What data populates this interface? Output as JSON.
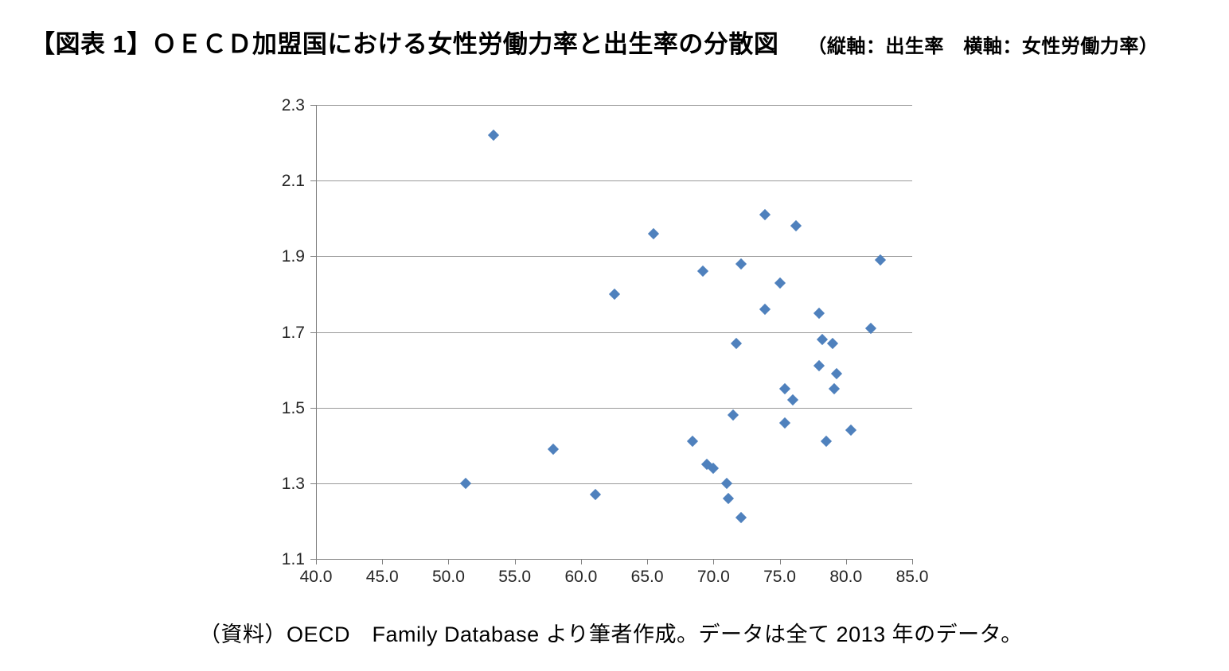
{
  "title": {
    "main": "【図表 1】ＯＥＣＤ加盟国における女性労働力率と出生率の分散図",
    "note": "（縦軸：出生率　横軸：女性労働力率）"
  },
  "source": {
    "text": "（資料）OECD　Family Database より筆者作成。データは全て 2013 年のデータ。"
  },
  "colors": {
    "marker": "#4F81BD",
    "gridline": "#9a9a9a",
    "axis": "#808080",
    "label_text": "#262626",
    "title_text": "#000000"
  },
  "chart_data": {
    "type": "scatter",
    "title": "ＯＥＣＤ加盟国における女性労働力率と出生率の分散図",
    "xlabel": "女性労働力率",
    "ylabel": "出生率",
    "xlim": [
      40.0,
      85.0
    ],
    "ylim": [
      1.1,
      2.3
    ],
    "x_ticks": [
      "40.0",
      "45.0",
      "50.0",
      "55.0",
      "60.0",
      "65.0",
      "70.0",
      "75.0",
      "80.0",
      "85.0"
    ],
    "y_ticks": [
      "1.1",
      "1.3",
      "1.5",
      "1.7",
      "1.9",
      "2.1",
      "2.3"
    ],
    "grid": true,
    "legend_position": "none",
    "marker_shape": "diamond",
    "points": [
      [
        53.4,
        2.22
      ],
      [
        51.3,
        1.3
      ],
      [
        57.9,
        1.39
      ],
      [
        61.1,
        1.27
      ],
      [
        62.5,
        1.8
      ],
      [
        65.5,
        1.96
      ],
      [
        69.2,
        1.86
      ],
      [
        72.1,
        1.88
      ],
      [
        73.9,
        2.01
      ],
      [
        76.2,
        1.98
      ],
      [
        73.9,
        1.76
      ],
      [
        75.0,
        1.83
      ],
      [
        78.0,
        1.75
      ],
      [
        81.9,
        1.71
      ],
      [
        82.6,
        1.89
      ],
      [
        78.2,
        1.68
      ],
      [
        79.0,
        1.67
      ],
      [
        71.7,
        1.67
      ],
      [
        78.0,
        1.61
      ],
      [
        79.3,
        1.59
      ],
      [
        75.4,
        1.55
      ],
      [
        79.1,
        1.55
      ],
      [
        76.0,
        1.52
      ],
      [
        71.5,
        1.48
      ],
      [
        75.4,
        1.46
      ],
      [
        68.4,
        1.41
      ],
      [
        78.5,
        1.41
      ],
      [
        80.4,
        1.44
      ],
      [
        69.5,
        1.35
      ],
      [
        70.0,
        1.34
      ],
      [
        71.0,
        1.3
      ],
      [
        71.1,
        1.26
      ],
      [
        72.1,
        1.21
      ]
    ]
  }
}
